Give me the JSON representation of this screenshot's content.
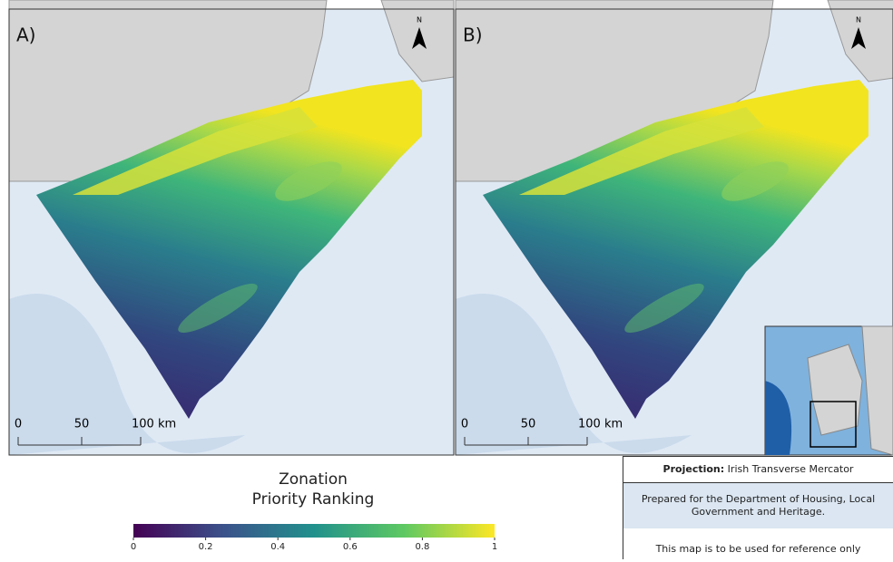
{
  "panels": [
    {
      "label": "A)"
    },
    {
      "label": "B)"
    }
  ],
  "north": "N",
  "scale_bar": [
    "0",
    "50",
    "100 km"
  ],
  "legend": {
    "title_line1": "Zonation",
    "title_line2": "Priority Ranking",
    "ticks": [
      0,
      0.2,
      0.4,
      0.6,
      0.8,
      1
    ],
    "range": [
      0,
      1
    ]
  },
  "info": {
    "projection_label": "Projection:",
    "projection": "Irish Transverse Mercator",
    "prepared": "Prepared for the Department of Housing, Local Government and Heritage.",
    "note": "This map is to be used for reference only"
  }
}
